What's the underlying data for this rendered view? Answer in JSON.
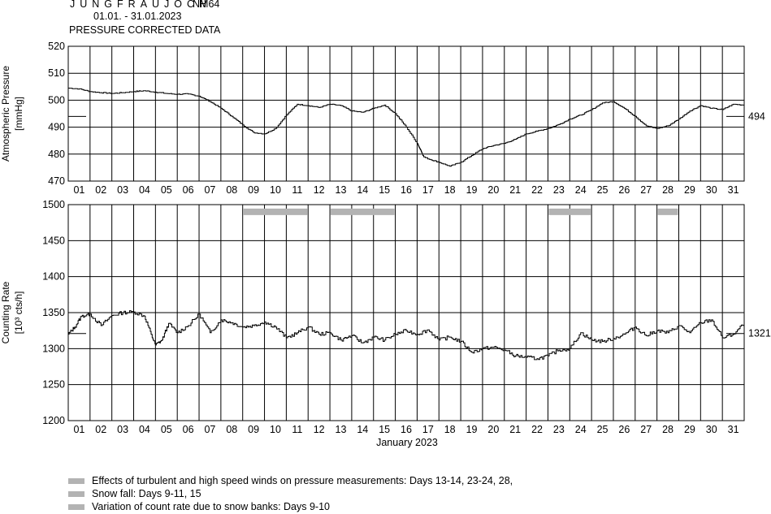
{
  "header": {
    "station": "JUNGFRAUJOCH",
    "station_code": "NM64",
    "period": "01.01. - 31.01.2023",
    "subtitle": "PRESSURE CORRECTED DATA"
  },
  "chart_data": [
    {
      "type": "line",
      "ylabel": "Atmospheric Pressure",
      "yunit": "[mmHg]",
      "ylim": [
        470,
        520
      ],
      "yticks": [
        470,
        480,
        490,
        500,
        510,
        520
      ],
      "xlim": [
        0,
        31
      ],
      "xtick_labels": [
        "01",
        "02",
        "03",
        "04",
        "05",
        "06",
        "07",
        "08",
        "09",
        "10",
        "11",
        "12",
        "13",
        "14",
        "15",
        "16",
        "17",
        "18",
        "19",
        "20",
        "21",
        "22",
        "23",
        "24",
        "25",
        "26",
        "27",
        "28",
        "29",
        "30",
        "31"
      ],
      "grid": true,
      "reference_line": {
        "value": 494,
        "label": "494"
      },
      "series": [
        {
          "x": [
            0,
            0.5,
            1,
            1.5,
            2,
            2.5,
            3,
            3.5,
            4,
            4.5,
            5,
            5.5,
            6,
            6.5,
            7,
            7.5,
            8,
            8.5,
            9,
            9.5,
            10,
            10.5,
            11,
            11.5,
            12,
            12.5,
            13,
            13.5,
            14,
            14.5,
            15,
            15.5,
            16,
            16.3,
            16.6,
            17,
            17.5,
            18,
            18.5,
            19,
            19.5,
            20,
            20.5,
            21,
            21.5,
            22,
            22.5,
            23,
            23.5,
            24,
            24.5,
            25,
            25.5,
            26,
            26.5,
            27,
            27.5,
            28,
            28.5,
            29,
            29.5,
            30,
            30.5,
            31
          ],
          "values": [
            504.5,
            504.2,
            503.2,
            502.8,
            502.5,
            502.8,
            503.2,
            503.5,
            503.0,
            502.5,
            502.2,
            502.3,
            501.5,
            499.5,
            497.0,
            494.0,
            490.8,
            488.0,
            487.5,
            489.5,
            494.5,
            498.5,
            498.0,
            497.3,
            498.5,
            498.0,
            496.0,
            495.5,
            497.0,
            498.2,
            495.0,
            490.0,
            484.0,
            479.0,
            478.0,
            477.0,
            475.5,
            477.0,
            479.5,
            482.0,
            483.2,
            484.0,
            485.5,
            487.5,
            488.5,
            489.5,
            491.0,
            493.0,
            494.5,
            496.5,
            499.0,
            499.5,
            497.0,
            494.0,
            490.5,
            489.5,
            490.5,
            493.0,
            496.0,
            498.0,
            497.0,
            496.5,
            498.5,
            498.2
          ]
        }
      ]
    },
    {
      "type": "line",
      "ylabel": "Counting Rate",
      "yunit": "[10³ cts/h]",
      "ylim": [
        1200,
        1500
      ],
      "yticks": [
        1200,
        1250,
        1300,
        1350,
        1400,
        1450,
        1500
      ],
      "xlim": [
        0,
        31
      ],
      "xlabel": "January 2023",
      "xtick_labels": [
        "01",
        "02",
        "03",
        "04",
        "05",
        "06",
        "07",
        "08",
        "09",
        "10",
        "11",
        "12",
        "13",
        "14",
        "15",
        "16",
        "17",
        "18",
        "19",
        "20",
        "21",
        "22",
        "23",
        "24",
        "25",
        "26",
        "27",
        "28",
        "29",
        "30",
        "31"
      ],
      "grid": true,
      "reference_line": {
        "value": 1321,
        "label": "1321"
      },
      "series": [
        {
          "x": [
            0,
            0.3,
            0.6,
            1,
            1.5,
            2,
            2.5,
            3,
            3.5,
            3.8,
            4,
            4.3,
            4.6,
            5,
            5.5,
            6,
            6.5,
            7,
            7.5,
            8,
            8.5,
            9,
            9.5,
            10,
            10.5,
            11,
            11.5,
            12,
            12.5,
            13,
            13.5,
            14,
            14.5,
            15,
            15.5,
            16,
            16.5,
            17,
            17.5,
            18,
            18.5,
            19,
            19.5,
            20,
            20.5,
            21,
            21.5,
            22,
            22.5,
            23,
            23.5,
            24,
            24.5,
            25,
            25.5,
            26,
            26.5,
            27,
            27.5,
            28,
            28.5,
            29,
            29.5,
            30,
            30.5,
            31
          ],
          "values": [
            1320,
            1330,
            1345,
            1348,
            1332,
            1346,
            1350,
            1351,
            1345,
            1320,
            1305,
            1312,
            1335,
            1322,
            1332,
            1348,
            1322,
            1340,
            1336,
            1330,
            1332,
            1337,
            1330,
            1315,
            1322,
            1330,
            1320,
            1322,
            1312,
            1318,
            1308,
            1316,
            1312,
            1320,
            1325,
            1320,
            1326,
            1312,
            1316,
            1310,
            1295,
            1300,
            1302,
            1298,
            1290,
            1288,
            1286,
            1290,
            1298,
            1300,
            1322,
            1312,
            1310,
            1314,
            1320,
            1330,
            1318,
            1325,
            1322,
            1332,
            1322,
            1336,
            1340,
            1315,
            1320,
            1335
          ]
        }
      ]
    }
  ],
  "bands": {
    "row": 1490,
    "ranges": [
      [
        8,
        11
      ],
      [
        12,
        15
      ],
      [
        22,
        24
      ],
      [
        27,
        28
      ]
    ]
  },
  "legend": {
    "swatch_color": "#b3b3b3",
    "items": [
      "Effects of turbulent and high speed winds on pressure measurements: Days 13-14, 23-24, 28,",
      "Snow fall: Days 9-11, 15",
      "Variation of count rate due to snow banks: Days 9-10"
    ]
  }
}
